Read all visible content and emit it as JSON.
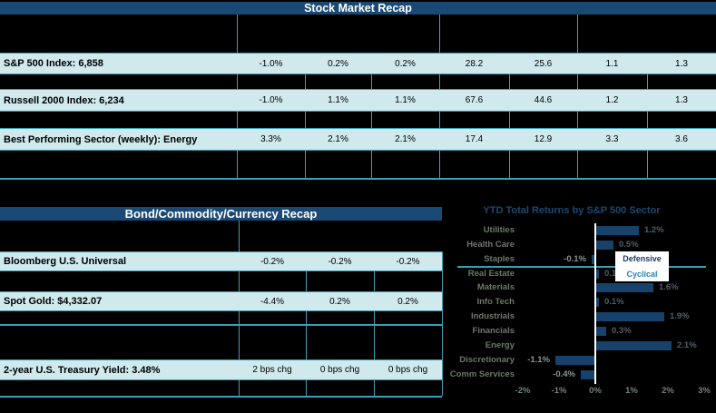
{
  "colors": {
    "background": "#000000",
    "header_bg": "#1A4A74",
    "header_text": "#FFFFFF",
    "cell_bg": "#CFE9EC",
    "grid_teal": "#3B9FB5",
    "bar_blue": "#17426B",
    "chart_title": "#1A4971",
    "sector_label": "#6C7A68",
    "value_label_positive": "#4E5E69",
    "value_label_negative": "#8A9695",
    "axis_label": "#75817D",
    "axis_line": "#FFFFFF",
    "legend_defensive_text": "#17375E",
    "legend_cyclical_text": "#2581B8"
  },
  "stock_table": {
    "title": "Stock Market Recap",
    "rows": [
      {
        "label": "S&P 500 Index: 6,858",
        "values": [
          "-1.0%",
          "0.2%",
          "0.2%",
          "28.2",
          "25.6",
          "1.1",
          "1.3"
        ]
      },
      {
        "label": "Russell 2000 Index: 6,234",
        "values": [
          "-1.0%",
          "1.1%",
          "1.1%",
          "67.6",
          "44.6",
          "1.2",
          "1.3"
        ]
      },
      {
        "label": "Best Performing Sector (weekly): Energy",
        "values": [
          "3.3%",
          "2.1%",
          "2.1%",
          "17.4",
          "12.9",
          "3.3",
          "3.6"
        ]
      }
    ]
  },
  "bond_table": {
    "title": "Bond/Commodity/Currency Recap",
    "rows": [
      {
        "label": "Bloomberg U.S. Universal",
        "values": [
          "-0.2%",
          "-0.2%",
          "-0.2%"
        ]
      },
      {
        "label": "Spot Gold: $4,332.07",
        "values": [
          "-4.4%",
          "0.2%",
          "0.2%"
        ]
      },
      {
        "label": "2-year U.S. Treasury Yield: 3.48%",
        "values": [
          "2 bps chg",
          "0 bps chg",
          "0 bps chg"
        ]
      }
    ]
  },
  "chart_data": {
    "type": "bar",
    "orientation": "horizontal",
    "title": "YTD Total Returns by S&P 500 Sector",
    "categories": [
      "Utilities",
      "Health Care",
      "Staples",
      "Real Estate",
      "Materials",
      "Info Tech",
      "Industrials",
      "Financials",
      "Energy",
      "Discretionary",
      "Comm Services"
    ],
    "values": [
      1.2,
      0.5,
      -0.1,
      0.1,
      1.6,
      0.1,
      1.9,
      0.3,
      2.1,
      -1.1,
      -0.4
    ],
    "value_labels": [
      "1.2%",
      "0.5%",
      "-0.1%",
      "0.1%",
      "1.6%",
      "0.1%",
      "1.9%",
      "0.3%",
      "2.1%",
      "-1.1%",
      "-0.4%"
    ],
    "x_tick_values": [
      -2,
      -1,
      0,
      1,
      2,
      3
    ],
    "x_tick_labels": [
      "-2%",
      "-1%",
      "0%",
      "1%",
      "2%",
      "3%"
    ],
    "xlim": [
      -2.5,
      3.3
    ],
    "grid": false,
    "legend": {
      "defensive": "Defensive",
      "cyclical": "Cyclical"
    },
    "groups": {
      "defensive": [
        "Utilities",
        "Health Care",
        "Staples"
      ],
      "cyclical": [
        "Real Estate",
        "Materials",
        "Info Tech",
        "Industrials",
        "Financials",
        "Energy",
        "Discretionary",
        "Comm Services"
      ]
    },
    "separator_after_category": "Staples"
  }
}
